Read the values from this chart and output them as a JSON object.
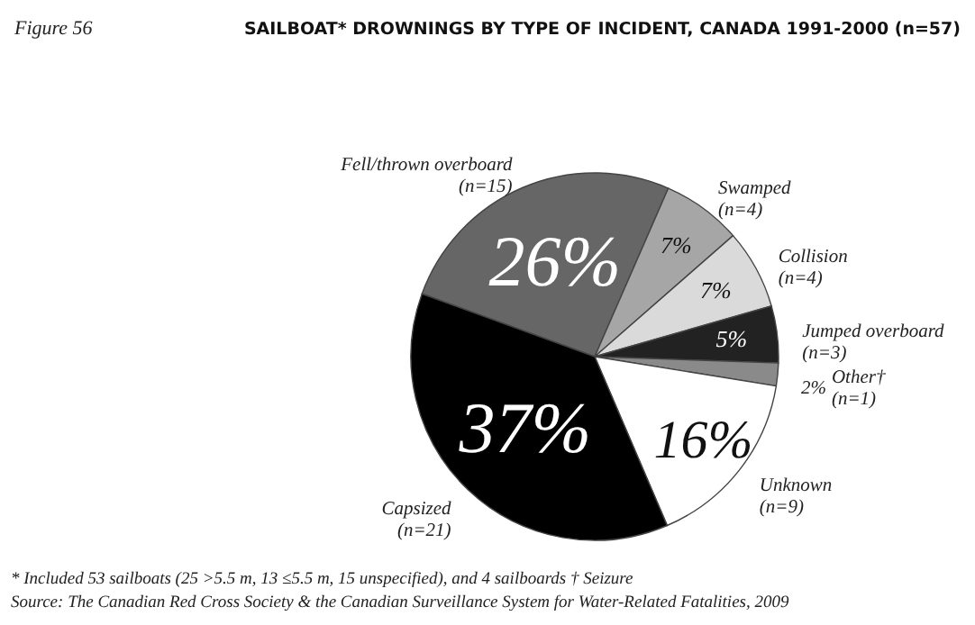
{
  "chart_data": {
    "type": "pie",
    "title": "SAILBOAT* DROWNINGS BY TYPE OF INCIDENT, CANADA 1991-2000 (n=57)",
    "categories": [
      "Fell/thrown overboard (n=15)",
      "Swamped (n=4)",
      "Collision (n=4)",
      "Jumped overboard (n=3)",
      "Other† (n=1)",
      "Unknown (n=9)",
      "Capsized (n=21)"
    ],
    "values": [
      26,
      7,
      7,
      5,
      2,
      16,
      37
    ],
    "value_labels": [
      "26%",
      "7%",
      "7%",
      "5%",
      "2%",
      "16%",
      "37%"
    ],
    "colors": [
      "#666666",
      "#a6a6a6",
      "#dadada",
      "#222222",
      "#8a8a8a",
      "#ffffff",
      "#000000"
    ],
    "annotations": [
      "Figure 56",
      "* Included 53 sailboats (25 >5.5 m, 13 ≤5.5 m, 15 unspecified), and 4 sailboards     † Seizure",
      "Source: The Canadian Red Cross Society & the Canadian Surveillance System for Water-Related Fatalities, 2009"
    ]
  }
}
